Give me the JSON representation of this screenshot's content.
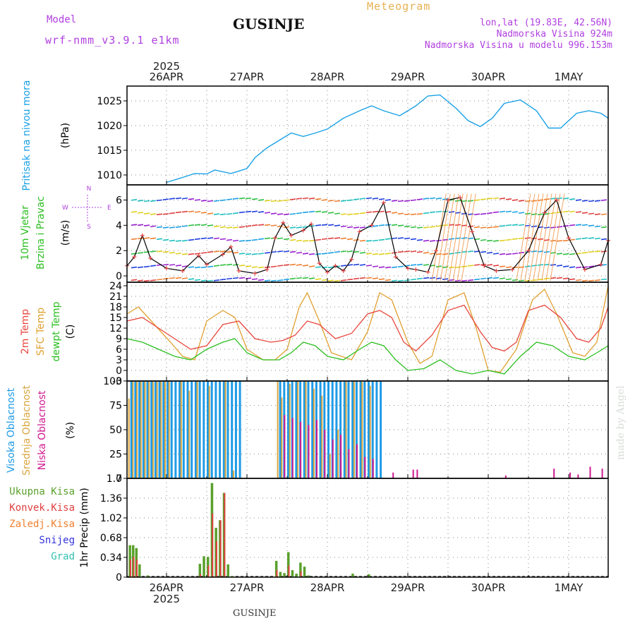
{
  "header": {
    "title": "GUSINJE",
    "subtitle": "Meteogram",
    "model_label": "Model",
    "model_name": "wrf-nmm_v3.9.1 e1km",
    "coords": "lon,lat (19.83E, 42.56N)",
    "elevation": "Nadmorska Visina 924m",
    "model_elevation": "Nadmorska Visina u modelu 996.153m",
    "footer": "GUSINJE",
    "watermark": "made by Angel"
  },
  "colors": {
    "pressure": "#1aa1e6",
    "temp2m": "#e8463c",
    "sfc_temp": "#e0a030",
    "dewpt": "#2bbf20",
    "cloud_high": "#1e9be6",
    "cloud_mid": "#d9a640",
    "cloud_low": "#d01890",
    "precip_total": "#5aa02c",
    "precip_conv": "#e04040",
    "precip_frz": "#f08030",
    "snow": "#3333dd",
    "grad": "#30c0b0",
    "purple_text": "#b040e0"
  },
  "chart_data": [
    {
      "type": "line",
      "panel": "pressure",
      "ylabel": "Pritisak na nivou mora",
      "unit": "(hPa)",
      "ylim": [
        1008,
        1028
      ],
      "yticks": [
        1010,
        1015,
        1020,
        1025
      ],
      "x_days": [
        "26APR",
        "27APR",
        "28APR",
        "29APR",
        "30APR",
        "1MAY"
      ],
      "x_year": "2025",
      "grid": true,
      "series": [
        {
          "x": [
            0,
            0.2,
            0.35,
            0.5,
            0.6,
            0.8,
            0.9,
            1.0,
            1.1,
            1.25,
            1.4,
            1.55,
            1.7,
            1.85,
            2.0,
            2.2,
            2.4,
            2.55,
            2.7,
            2.9,
            3.1,
            3.25,
            3.4,
            3.6,
            3.75,
            3.9,
            4.05,
            4.2,
            4.4,
            4.6,
            4.75,
            4.9,
            5.1,
            5.25,
            5.4,
            5.55
          ],
          "y": [
            1008.5,
            1009.5,
            1010.3,
            1010.2,
            1011,
            1010.3,
            1010.8,
            1011.3,
            1013.5,
            1015.5,
            1017,
            1018.5,
            1017.8,
            1018.5,
            1019.3,
            1021.5,
            1023,
            1024,
            1023,
            1022,
            1024,
            1026,
            1026.2,
            1023.5,
            1021,
            1019.8,
            1021.5,
            1024.5,
            1025.2,
            1023,
            1019.5,
            1019.5,
            1022.5,
            1023,
            1022.5,
            1021.5
          ]
        }
      ]
    },
    {
      "type": "line",
      "panel": "wind",
      "ylabel": "10m Vjetar",
      "ylabel2": "Brzina i Pravac",
      "unit": "(m/s)",
      "compass": "N",
      "compass_w": "W",
      "compass_e": "E",
      "compass_s": "S",
      "ylim": [
        -0.5,
        7.2
      ],
      "yticks": [
        0,
        2,
        4,
        6
      ],
      "series": [
        {
          "name": "10m wind speed",
          "x": [
            -0.5,
            -0.4,
            -0.3,
            -0.2,
            0.0,
            0.2,
            0.4,
            0.5,
            0.7,
            0.8,
            0.9,
            1.1,
            1.25,
            1.35,
            1.45,
            1.55,
            1.7,
            1.8,
            1.9,
            2.0,
            2.1,
            2.2,
            2.3,
            2.4,
            2.55,
            2.7,
            2.85,
            3.0,
            3.1,
            3.25,
            3.35,
            3.5,
            3.65,
            3.8,
            3.95,
            4.1,
            4.3,
            4.5,
            4.7,
            4.85,
            5.0,
            5.2,
            5.4,
            5.55
          ],
          "y": [
            0.8,
            1.5,
            3.2,
            1.4,
            0.6,
            0.4,
            1.6,
            0.9,
            1.7,
            2.3,
            0.4,
            0.2,
            0.5,
            3.0,
            4.2,
            3.2,
            3.6,
            4.1,
            1.0,
            0.3,
            0.8,
            0.4,
            1.3,
            3.5,
            4.0,
            5.8,
            1.5,
            0.6,
            0.5,
            0.3,
            2.0,
            6.0,
            6.2,
            3.5,
            0.8,
            0.4,
            0.5,
            2.0,
            5.0,
            6.0,
            3.0,
            0.5,
            0.9,
            2.8
          ]
        }
      ]
    },
    {
      "type": "line",
      "panel": "temperature",
      "ylabel": "2m Temp",
      "ylabel2": "SFC Temp",
      "ylabel3": "dewpt Temp",
      "unit": "(C)",
      "ylim": [
        -3,
        25
      ],
      "yticks": [
        -3,
        0,
        3,
        6,
        9,
        12,
        15,
        18,
        21,
        24
      ],
      "series": [
        {
          "name": "2m Temp",
          "x": [
            -0.5,
            -0.3,
            -0.1,
            0.1,
            0.3,
            0.5,
            0.7,
            0.9,
            1.1,
            1.3,
            1.45,
            1.6,
            1.75,
            1.9,
            2.1,
            2.3,
            2.5,
            2.65,
            2.8,
            2.95,
            3.1,
            3.3,
            3.5,
            3.7,
            3.9,
            4.05,
            4.2,
            4.35,
            4.5,
            4.7,
            4.9,
            5.1,
            5.25,
            5.4,
            5.55
          ],
          "y": [
            14,
            15,
            12,
            9,
            6,
            7,
            13,
            14,
            9,
            8,
            8.5,
            10,
            14,
            13,
            9,
            10.5,
            16,
            17,
            15,
            8,
            5.5,
            10,
            17,
            18.5,
            11,
            6.5,
            5.5,
            8,
            17,
            18.5,
            15,
            9,
            8,
            12,
            18
          ]
        },
        {
          "name": "SFC Temp",
          "x": [
            -0.5,
            -0.35,
            -0.15,
            0.05,
            0.2,
            0.35,
            0.5,
            0.7,
            0.85,
            1.0,
            1.2,
            1.35,
            1.5,
            1.65,
            1.75,
            1.9,
            2.05,
            2.3,
            2.5,
            2.65,
            2.8,
            3.0,
            3.15,
            3.3,
            3.5,
            3.7,
            3.85,
            4.0,
            4.15,
            4.35,
            4.55,
            4.7,
            4.85,
            5.05,
            5.2,
            5.35,
            5.5,
            5.55
          ],
          "y": [
            16,
            18,
            13,
            8,
            4,
            3,
            14,
            17,
            15,
            6,
            3,
            3,
            6,
            18,
            22,
            14,
            5,
            3,
            11,
            22,
            20,
            8,
            2,
            4,
            20,
            22,
            12,
            0,
            -0.5,
            6,
            20,
            23,
            16,
            5,
            4,
            8,
            24,
            23
          ]
        },
        {
          "name": "dewpt Temp",
          "x": [
            -0.5,
            -0.3,
            -0.1,
            0.1,
            0.3,
            0.5,
            0.7,
            0.85,
            1.0,
            1.2,
            1.4,
            1.55,
            1.7,
            1.85,
            2.0,
            2.2,
            2.4,
            2.55,
            2.7,
            2.85,
            3.0,
            3.2,
            3.4,
            3.6,
            3.8,
            4.0,
            4.2,
            4.4,
            4.6,
            4.8,
            5.0,
            5.2,
            5.35,
            5.5,
            5.55
          ],
          "y": [
            9,
            8,
            6,
            4,
            3,
            6,
            8,
            9,
            5,
            3,
            3,
            5,
            8,
            7,
            4,
            3,
            6,
            8,
            7,
            3,
            0,
            0.5,
            3,
            0,
            -1,
            0,
            -1,
            4,
            8,
            7,
            4,
            3,
            5,
            7,
            6
          ]
        }
      ]
    },
    {
      "type": "bar",
      "panel": "clouds",
      "ylabel": "Visoka Oblacnost",
      "ylabel2": "Srednja Oblacnost",
      "ylabel3": "Niska Oblacnost",
      "unit": "(%)",
      "ylim": [
        0,
        100
      ],
      "yticks": [
        0,
        25,
        50,
        75,
        100
      ],
      "series": [
        {
          "name": "Visoka Oblacnost",
          "x_range": [
            [
              -0.45,
              0.95
            ],
            [
              1.4,
              2.65
            ]
          ],
          "value": 100
        },
        {
          "name": "Srednja Oblacnost",
          "x": [
            -0.45,
            -0.4,
            -0.35,
            -0.3,
            -0.25,
            -0.2,
            -0.15,
            -0.1,
            -0.05,
            0.0,
            0.05,
            0.2,
            0.3,
            0.4,
            0.55,
            0.75,
            0.85,
            1.4,
            1.45,
            1.55,
            1.65,
            1.75,
            1.85,
            1.95,
            2.05,
            2.15,
            2.25,
            2.35,
            2.45,
            2.55
          ],
          "y": [
            82,
            100,
            100,
            100,
            100,
            100,
            100,
            100,
            100,
            100,
            100,
            100,
            90,
            100,
            95,
            100,
            8,
            100,
            83,
            97,
            100,
            100,
            92,
            85,
            25,
            50,
            100,
            100,
            99,
            95
          ]
        },
        {
          "name": "Niska Oblacnost",
          "x": [
            1.45,
            1.55,
            1.65,
            1.75,
            1.85,
            1.95,
            2.05,
            2.15,
            2.25,
            2.35,
            2.45,
            2.55,
            2.8,
            3.05,
            3.1,
            4.2,
            4.8,
            5.0,
            5.1,
            5.25,
            5.4
          ],
          "y": [
            65,
            62,
            58,
            55,
            60,
            50,
            40,
            45,
            30,
            35,
            22,
            20,
            6,
            9,
            9,
            3,
            10,
            6,
            4,
            12,
            10
          ]
        }
      ]
    },
    {
      "type": "bar",
      "panel": "precipitation",
      "ylabel": "1hr Precip (mm)",
      "legend": [
        "Ukupna Kisa",
        "Konvek.Kisa",
        "Zaledj.Kisa",
        "Snijeg",
        "Grad"
      ],
      "ylim": [
        0,
        1.7
      ],
      "yticks": [
        0,
        0.34,
        0.68,
        1.02,
        1.36,
        1.7
      ],
      "series": [
        {
          "name": "Ukupna Kisa",
          "x": [
            -0.47,
            -0.43,
            -0.39,
            -0.35,
            -0.25,
            0.4,
            0.45,
            0.5,
            0.55,
            0.6,
            0.65,
            0.7,
            0.75,
            0.8,
            1.35,
            1.4,
            1.45,
            1.5,
            1.55,
            1.6,
            1.65,
            1.7,
            1.75,
            2.3,
            2.5
          ],
          "y": [
            0.55,
            0.55,
            0.5,
            0.22,
            0.03,
            0.23,
            0.36,
            0.35,
            1.62,
            0.85,
            0.98,
            1.45,
            0.22,
            0.02,
            0.28,
            0.09,
            0.07,
            0.43,
            0.12,
            0.06,
            0.25,
            0.18,
            0.03,
            0.06,
            0.05
          ]
        },
        {
          "name": "Konvek.Kisa",
          "x": [
            -0.47,
            -0.43,
            -0.39,
            0.4,
            0.5,
            0.55,
            0.6,
            0.65,
            0.7,
            1.35,
            1.5,
            1.65
          ],
          "y": [
            0.3,
            0.35,
            0.3,
            0.05,
            0.2,
            1.1,
            0.62,
            0.98,
            1.45,
            0.12,
            0.2,
            0.1
          ]
        }
      ]
    }
  ]
}
